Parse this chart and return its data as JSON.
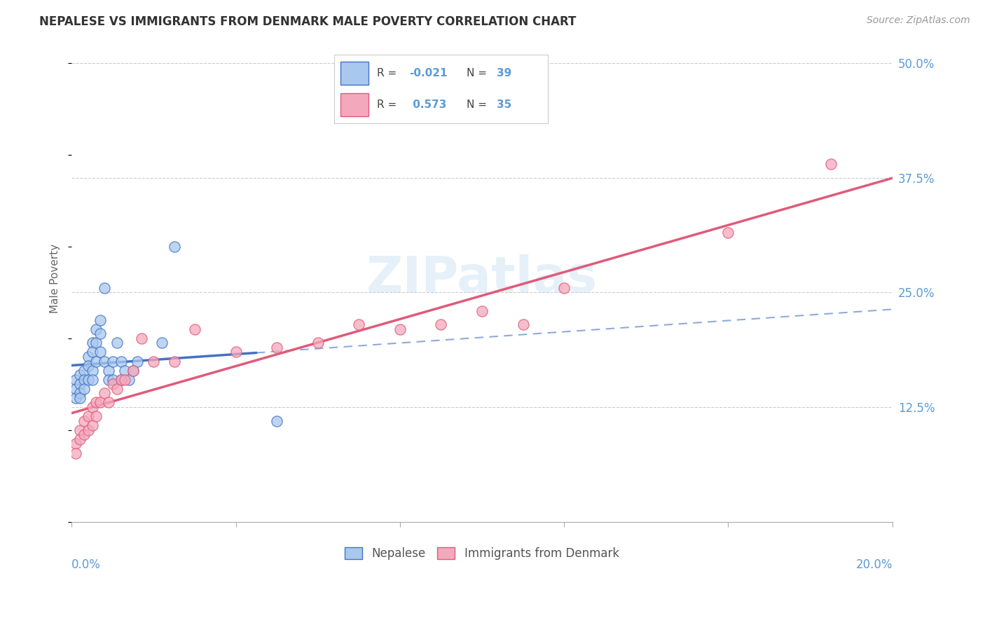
{
  "title": "NEPALESE VS IMMIGRANTS FROM DENMARK MALE POVERTY CORRELATION CHART",
  "source": "Source: ZipAtlas.com",
  "ylabel": "Male Poverty",
  "yticks": [
    "12.5%",
    "25.0%",
    "37.5%",
    "50.0%"
  ],
  "ytick_vals": [
    0.125,
    0.25,
    0.375,
    0.5
  ],
  "xlim": [
    0.0,
    0.2
  ],
  "ylim": [
    0.0,
    0.53
  ],
  "color_blue": "#a8c8ee",
  "color_pink": "#f4a8bc",
  "line_blue": "#4472c4",
  "line_pink": "#e05a7a",
  "watermark": "ZIPatlas",
  "nepalese_x": [
    0.001,
    0.001,
    0.001,
    0.002,
    0.002,
    0.002,
    0.002,
    0.003,
    0.003,
    0.003,
    0.004,
    0.004,
    0.004,
    0.005,
    0.005,
    0.005,
    0.005,
    0.006,
    0.006,
    0.006,
    0.007,
    0.007,
    0.007,
    0.008,
    0.008,
    0.009,
    0.009,
    0.01,
    0.01,
    0.011,
    0.012,
    0.012,
    0.013,
    0.014,
    0.015,
    0.016,
    0.022,
    0.025,
    0.05
  ],
  "nepalese_y": [
    0.155,
    0.145,
    0.135,
    0.16,
    0.15,
    0.14,
    0.135,
    0.165,
    0.155,
    0.145,
    0.18,
    0.17,
    0.155,
    0.195,
    0.185,
    0.165,
    0.155,
    0.21,
    0.195,
    0.175,
    0.22,
    0.205,
    0.185,
    0.255,
    0.175,
    0.165,
    0.155,
    0.175,
    0.155,
    0.195,
    0.175,
    0.155,
    0.165,
    0.155,
    0.165,
    0.175,
    0.195,
    0.3,
    0.11
  ],
  "denmark_x": [
    0.001,
    0.001,
    0.002,
    0.002,
    0.003,
    0.003,
    0.004,
    0.004,
    0.005,
    0.005,
    0.006,
    0.006,
    0.007,
    0.008,
    0.009,
    0.01,
    0.011,
    0.012,
    0.013,
    0.015,
    0.017,
    0.02,
    0.025,
    0.03,
    0.04,
    0.05,
    0.06,
    0.07,
    0.08,
    0.09,
    0.1,
    0.11,
    0.12,
    0.16,
    0.185
  ],
  "denmark_y": [
    0.085,
    0.075,
    0.1,
    0.09,
    0.11,
    0.095,
    0.115,
    0.1,
    0.125,
    0.105,
    0.13,
    0.115,
    0.13,
    0.14,
    0.13,
    0.15,
    0.145,
    0.155,
    0.155,
    0.165,
    0.2,
    0.175,
    0.175,
    0.21,
    0.185,
    0.19,
    0.195,
    0.215,
    0.21,
    0.215,
    0.23,
    0.215,
    0.255,
    0.315,
    0.39
  ],
  "legend_line1_r": "-0.021",
  "legend_line1_n": "39",
  "legend_line2_r": "0.573",
  "legend_line2_n": "35"
}
